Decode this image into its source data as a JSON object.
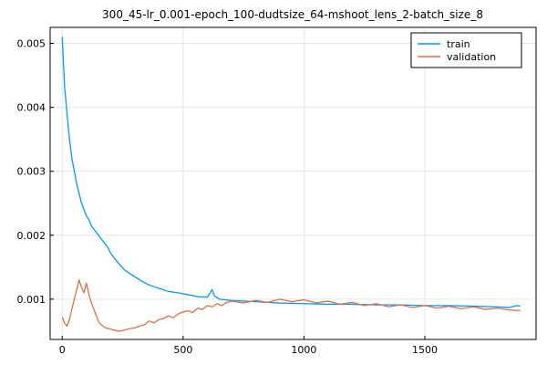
{
  "chart_data": {
    "type": "line",
    "title": "300_45-lr_0.001-epoch_100-dudtsize_64-mshoot_lens_2-batch_size_8",
    "xlabel": "",
    "ylabel": "",
    "xlim": [
      -50,
      1960
    ],
    "ylim": [
      0.00037,
      0.00525
    ],
    "xticks": [
      0,
      500,
      1000,
      1500
    ],
    "xtick_labels": [
      "0",
      "500",
      "1000",
      "1500"
    ],
    "yticks": [
      0.001,
      0.002,
      0.003,
      0.004,
      0.005
    ],
    "ytick_labels": [
      "0.001",
      "0.002",
      "0.003",
      "0.004",
      "0.005"
    ],
    "grid": true,
    "legend_position": "top-right",
    "series": [
      {
        "name": "train",
        "color": "#009AFA",
        "x": [
          0,
          10,
          20,
          30,
          40,
          50,
          60,
          70,
          80,
          90,
          100,
          110,
          120,
          130,
          140,
          150,
          160,
          170,
          180,
          190,
          200,
          220,
          240,
          260,
          280,
          300,
          330,
          360,
          400,
          440,
          480,
          520,
          560,
          600,
          620,
          630,
          650,
          700,
          750,
          800,
          900,
          1000,
          1100,
          1200,
          1300,
          1400,
          1500,
          1600,
          1700,
          1800,
          1850,
          1880,
          1895
        ],
        "y": [
          0.0051,
          0.0043,
          0.0039,
          0.0035,
          0.0032,
          0.003,
          0.0028,
          0.00265,
          0.0025,
          0.0024,
          0.0023,
          0.00225,
          0.00215,
          0.0021,
          0.00205,
          0.002,
          0.00195,
          0.0019,
          0.00185,
          0.0018,
          0.00172,
          0.00162,
          0.00153,
          0.00145,
          0.0014,
          0.00135,
          0.00128,
          0.00122,
          0.00117,
          0.00112,
          0.0011,
          0.00107,
          0.00104,
          0.00103,
          0.00115,
          0.00105,
          0.001,
          0.00098,
          0.00097,
          0.00096,
          0.00094,
          0.00093,
          0.00092,
          0.00092,
          0.00091,
          0.00091,
          0.0009,
          0.0009,
          0.00089,
          0.00088,
          0.00087,
          0.0009,
          0.00089
        ]
      },
      {
        "name": "validation",
        "color": "#E26F46",
        "x": [
          0,
          10,
          20,
          30,
          40,
          50,
          60,
          70,
          80,
          90,
          100,
          110,
          120,
          130,
          140,
          150,
          160,
          180,
          200,
          220,
          240,
          260,
          280,
          300,
          320,
          340,
          360,
          380,
          400,
          420,
          440,
          460,
          480,
          500,
          520,
          540,
          560,
          580,
          600,
          620,
          640,
          660,
          680,
          700,
          750,
          800,
          850,
          900,
          950,
          1000,
          1050,
          1100,
          1150,
          1200,
          1250,
          1300,
          1350,
          1400,
          1450,
          1500,
          1550,
          1600,
          1650,
          1700,
          1750,
          1800,
          1850,
          1895
        ],
        "y": [
          0.00072,
          0.00062,
          0.00058,
          0.00068,
          0.00085,
          0.001,
          0.00115,
          0.0013,
          0.00118,
          0.0011,
          0.00125,
          0.00108,
          0.00095,
          0.00085,
          0.00075,
          0.00065,
          0.0006,
          0.00055,
          0.00053,
          0.00051,
          0.0005,
          0.00052,
          0.00054,
          0.00055,
          0.00058,
          0.0006,
          0.00066,
          0.00063,
          0.00068,
          0.0007,
          0.00074,
          0.00071,
          0.00077,
          0.0008,
          0.00082,
          0.00079,
          0.00086,
          0.00084,
          0.0009,
          0.00088,
          0.00093,
          0.0009,
          0.00095,
          0.00097,
          0.00094,
          0.00098,
          0.00095,
          0.001,
          0.00096,
          0.00099,
          0.00094,
          0.00097,
          0.00092,
          0.00095,
          0.0009,
          0.00093,
          0.00088,
          0.00091,
          0.00087,
          0.0009,
          0.00086,
          0.00089,
          0.00085,
          0.00088,
          0.00084,
          0.00086,
          0.00083,
          0.00082
        ]
      }
    ]
  }
}
